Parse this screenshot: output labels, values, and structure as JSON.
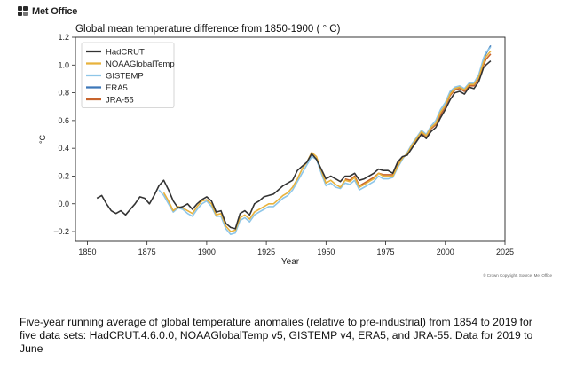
{
  "brand": {
    "name": "Met Office",
    "icon": "met-office-logo-icon"
  },
  "copyright": "© Crown Copyright. Source: Met Office",
  "caption": "Five-year running average of global temperature anomalies (relative to pre-industrial) from 1854 to 2019 for five data sets: HadCRUT.4.6.0.0, NOAAGlobalTemp v5, GISTEMP v4, ERA5, and JRA-55. Data for 2019 to June",
  "chart_data": {
    "type": "line",
    "title": "Global mean temperature difference from 1850-1900 ( ° C)",
    "xlabel": "Year",
    "ylabel": "°C",
    "xlim": [
      1845,
      2025
    ],
    "ylim": [
      -0.27,
      1.2
    ],
    "xticks": [
      1850,
      1875,
      1900,
      1925,
      1950,
      1975,
      2000,
      2025
    ],
    "yticks": [
      -0.2,
      0.0,
      0.2,
      0.4,
      0.6,
      0.8,
      1.0,
      1.2
    ],
    "xtick_labels": [
      "1850",
      "1875",
      "1900",
      "1925",
      "1950",
      "1975",
      "2000",
      "2025"
    ],
    "ytick_labels": [
      "−0.2",
      "0.0",
      "0.2",
      "0.4",
      "0.6",
      "0.8",
      "1.0",
      "1.2"
    ],
    "grid": false,
    "legend": "top-left",
    "series": [
      {
        "name": "HadCRUT",
        "color": "#333333",
        "x": [
          1854,
          1856,
          1858,
          1860,
          1862,
          1864,
          1866,
          1868,
          1870,
          1872,
          1874,
          1876,
          1878,
          1880,
          1882,
          1884,
          1886,
          1888,
          1890,
          1892,
          1894,
          1896,
          1898,
          1900,
          1902,
          1904,
          1906,
          1908,
          1910,
          1912,
          1914,
          1916,
          1918,
          1920,
          1922,
          1924,
          1926,
          1928,
          1930,
          1932,
          1934,
          1936,
          1938,
          1940,
          1942,
          1944,
          1946,
          1948,
          1950,
          1952,
          1954,
          1956,
          1958,
          1960,
          1962,
          1964,
          1966,
          1968,
          1970,
          1972,
          1974,
          1976,
          1978,
          1980,
          1982,
          1984,
          1986,
          1988,
          1990,
          1992,
          1994,
          1996,
          1998,
          2000,
          2002,
          2004,
          2006,
          2008,
          2010,
          2012,
          2014,
          2016,
          2017,
          2019
        ],
        "y": [
          0.04,
          0.06,
          0.0,
          -0.05,
          -0.07,
          -0.05,
          -0.08,
          -0.04,
          0.0,
          0.05,
          0.04,
          0.0,
          0.06,
          0.13,
          0.17,
          0.1,
          0.02,
          -0.03,
          -0.02,
          0.0,
          -0.04,
          0.0,
          0.03,
          0.05,
          0.02,
          -0.06,
          -0.05,
          -0.14,
          -0.17,
          -0.18,
          -0.07,
          -0.05,
          -0.08,
          0.0,
          0.02,
          0.05,
          0.06,
          0.07,
          0.1,
          0.13,
          0.15,
          0.17,
          0.24,
          0.27,
          0.3,
          0.36,
          0.32,
          0.25,
          0.18,
          0.2,
          0.18,
          0.16,
          0.2,
          0.2,
          0.22,
          0.17,
          0.18,
          0.2,
          0.22,
          0.25,
          0.24,
          0.24,
          0.22,
          0.3,
          0.34,
          0.35,
          0.4,
          0.45,
          0.5,
          0.47,
          0.52,
          0.55,
          0.62,
          0.68,
          0.75,
          0.8,
          0.81,
          0.79,
          0.84,
          0.83,
          0.88,
          0.98,
          1.0,
          1.03
        ]
      },
      {
        "name": "NOAAGlobalTemp",
        "color": "#e8b23c",
        "x": [
          1882,
          1884,
          1886,
          1888,
          1890,
          1892,
          1894,
          1896,
          1898,
          1900,
          1902,
          1904,
          1906,
          1908,
          1910,
          1912,
          1914,
          1916,
          1918,
          1920,
          1922,
          1924,
          1926,
          1928,
          1930,
          1932,
          1934,
          1936,
          1938,
          1940,
          1942,
          1944,
          1946,
          1948,
          1950,
          1952,
          1954,
          1956,
          1958,
          1960,
          1962,
          1964,
          1966,
          1968,
          1970,
          1972,
          1974,
          1976,
          1978,
          1980,
          1982,
          1984,
          1986,
          1988,
          1990,
          1992,
          1994,
          1996,
          1998,
          2000,
          2002,
          2004,
          2006,
          2008,
          2010,
          2012,
          2014,
          2016,
          2017,
          2019
        ],
        "y": [
          0.08,
          0.02,
          -0.05,
          -0.02,
          -0.03,
          -0.05,
          -0.07,
          -0.02,
          0.02,
          0.03,
          0.0,
          -0.08,
          -0.07,
          -0.16,
          -0.2,
          -0.19,
          -0.1,
          -0.08,
          -0.11,
          -0.06,
          -0.04,
          -0.02,
          0.0,
          0.0,
          0.03,
          0.06,
          0.08,
          0.12,
          0.18,
          0.25,
          0.3,
          0.37,
          0.34,
          0.24,
          0.15,
          0.17,
          0.14,
          0.12,
          0.17,
          0.16,
          0.19,
          0.12,
          0.14,
          0.16,
          0.18,
          0.22,
          0.2,
          0.2,
          0.2,
          0.27,
          0.33,
          0.36,
          0.42,
          0.47,
          0.52,
          0.49,
          0.55,
          0.58,
          0.66,
          0.71,
          0.79,
          0.83,
          0.84,
          0.82,
          0.86,
          0.86,
          0.91,
          1.02,
          1.06,
          1.1
        ]
      },
      {
        "name": "GISTEMP",
        "color": "#8ec6e8",
        "x": [
          1880,
          1882,
          1884,
          1886,
          1888,
          1890,
          1892,
          1894,
          1896,
          1898,
          1900,
          1902,
          1904,
          1906,
          1908,
          1910,
          1912,
          1914,
          1916,
          1918,
          1920,
          1922,
          1924,
          1926,
          1928,
          1930,
          1932,
          1934,
          1936,
          1938,
          1940,
          1942,
          1944,
          1946,
          1948,
          1950,
          1952,
          1954,
          1956,
          1958,
          1960,
          1962,
          1964,
          1966,
          1968,
          1970,
          1972,
          1974,
          1976,
          1978,
          1980,
          1982,
          1984,
          1986,
          1988,
          1990,
          1992,
          1994,
          1996,
          1998,
          2000,
          2002,
          2004,
          2006,
          2008,
          2010,
          2012,
          2014,
          2016,
          2017,
          2019
        ],
        "y": [
          0.1,
          0.06,
          0.0,
          -0.06,
          -0.03,
          -0.04,
          -0.07,
          -0.09,
          -0.04,
          0.0,
          0.02,
          -0.02,
          -0.09,
          -0.09,
          -0.18,
          -0.22,
          -0.21,
          -0.12,
          -0.1,
          -0.13,
          -0.08,
          -0.06,
          -0.04,
          -0.02,
          -0.02,
          0.01,
          0.04,
          0.06,
          0.1,
          0.16,
          0.22,
          0.28,
          0.34,
          0.32,
          0.22,
          0.13,
          0.15,
          0.12,
          0.11,
          0.15,
          0.14,
          0.17,
          0.1,
          0.12,
          0.14,
          0.16,
          0.2,
          0.18,
          0.18,
          0.19,
          0.26,
          0.32,
          0.37,
          0.43,
          0.48,
          0.53,
          0.5,
          0.56,
          0.6,
          0.68,
          0.73,
          0.81,
          0.84,
          0.85,
          0.83,
          0.87,
          0.87,
          0.93,
          1.05,
          1.09,
          1.13
        ]
      },
      {
        "name": "ERA5",
        "color": "#3d78b9",
        "x": [
          1979,
          1980,
          1982,
          1984,
          1986,
          1988,
          1990,
          1992,
          1994,
          1996,
          1998,
          2000,
          2002,
          2004,
          2006,
          2008,
          2010,
          2012,
          2014,
          2016,
          2017,
          2019
        ],
        "y": [
          0.24,
          0.27,
          0.33,
          0.36,
          0.42,
          0.47,
          0.52,
          0.49,
          0.55,
          0.58,
          0.66,
          0.71,
          0.8,
          0.83,
          0.84,
          0.82,
          0.87,
          0.86,
          0.92,
          1.04,
          1.08,
          1.14
        ]
      },
      {
        "name": "JRA-55",
        "color": "#c8642d",
        "x": [
          1958,
          1960,
          1962,
          1964,
          1966,
          1968,
          1970,
          1972,
          1974,
          1976,
          1978,
          1980,
          1982,
          1984,
          1986,
          1988,
          1990,
          1992,
          1994,
          1996,
          1998,
          2000,
          2002,
          2004,
          2006,
          2008,
          2010,
          2012,
          2014,
          2016,
          2017,
          2019
        ],
        "y": [
          0.18,
          0.17,
          0.2,
          0.13,
          0.15,
          0.17,
          0.19,
          0.22,
          0.21,
          0.21,
          0.21,
          0.28,
          0.33,
          0.36,
          0.41,
          0.46,
          0.51,
          0.48,
          0.54,
          0.57,
          0.64,
          0.7,
          0.78,
          0.82,
          0.83,
          0.81,
          0.85,
          0.85,
          0.9,
          1.0,
          1.04,
          1.08
        ]
      }
    ]
  }
}
